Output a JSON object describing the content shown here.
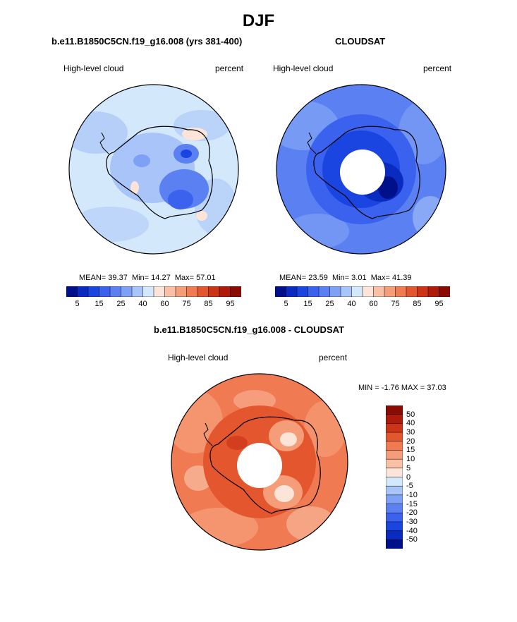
{
  "figure": {
    "title": "DJF",
    "colors": {
      "outline": "#000000",
      "pole_mask": "#ffffff",
      "top_left_field": "#d4e8fb",
      "top_right_field": "#5a8ff4",
      "bottom_field": "#f07a52"
    }
  },
  "panels": {
    "model": {
      "title": "b.e11.B1850C5CN.f19_g16.008 (yrs 381-400)",
      "left_label": "High-level cloud",
      "right_label": "percent",
      "stats": {
        "mean_label": "MEAN=",
        "mean": "39.37",
        "min_label": "Min=",
        "min": "14.27",
        "max_label": "Max=",
        "max": "57.01"
      }
    },
    "obs": {
      "title": "CLOUDSAT",
      "left_label": "High-level cloud",
      "right_label": "percent",
      "stats": {
        "mean_label": "MEAN=",
        "mean": "23.59",
        "min_label": "Min=",
        "min": "3.01",
        "max_label": "Max=",
        "max": "41.39"
      }
    },
    "diff": {
      "title": "b.e11.B1850C5CN.f19_g16.008 - CLOUDSAT",
      "left_label": "High-level cloud",
      "right_label": "percent",
      "minmax": "MIN =  -1.76 MAX =  37.03"
    }
  },
  "colorbars": {
    "abs": {
      "colors": [
        "#000f8a",
        "#0a2bc0",
        "#1a45e0",
        "#3a62ee",
        "#5a80f2",
        "#7ea0f5",
        "#a8c4f8",
        "#d4e8fb",
        "#fde4d8",
        "#f9c0a6",
        "#f59c78",
        "#f07a52",
        "#e4562e",
        "#cc3418",
        "#ae1b0a",
        "#8a0b02"
      ],
      "labels": [
        "5",
        "15",
        "25",
        "40",
        "60",
        "75",
        "85",
        "95"
      ]
    },
    "diff": {
      "colors": [
        "#8a0b02",
        "#ae1b0a",
        "#cc3418",
        "#e4562e",
        "#f07a52",
        "#f59c78",
        "#f9c0a6",
        "#fde4d8",
        "#d4e8fb",
        "#a8c4f8",
        "#7ea0f5",
        "#5a80f2",
        "#3a62ee",
        "#1a45e0",
        "#0a2bc0",
        "#000f8a"
      ],
      "labels": [
        "50",
        "40",
        "30",
        "20",
        "15",
        "10",
        "5",
        "0",
        "-5",
        "-10",
        "-15",
        "-20",
        "-30",
        "-40",
        "-50"
      ]
    }
  }
}
